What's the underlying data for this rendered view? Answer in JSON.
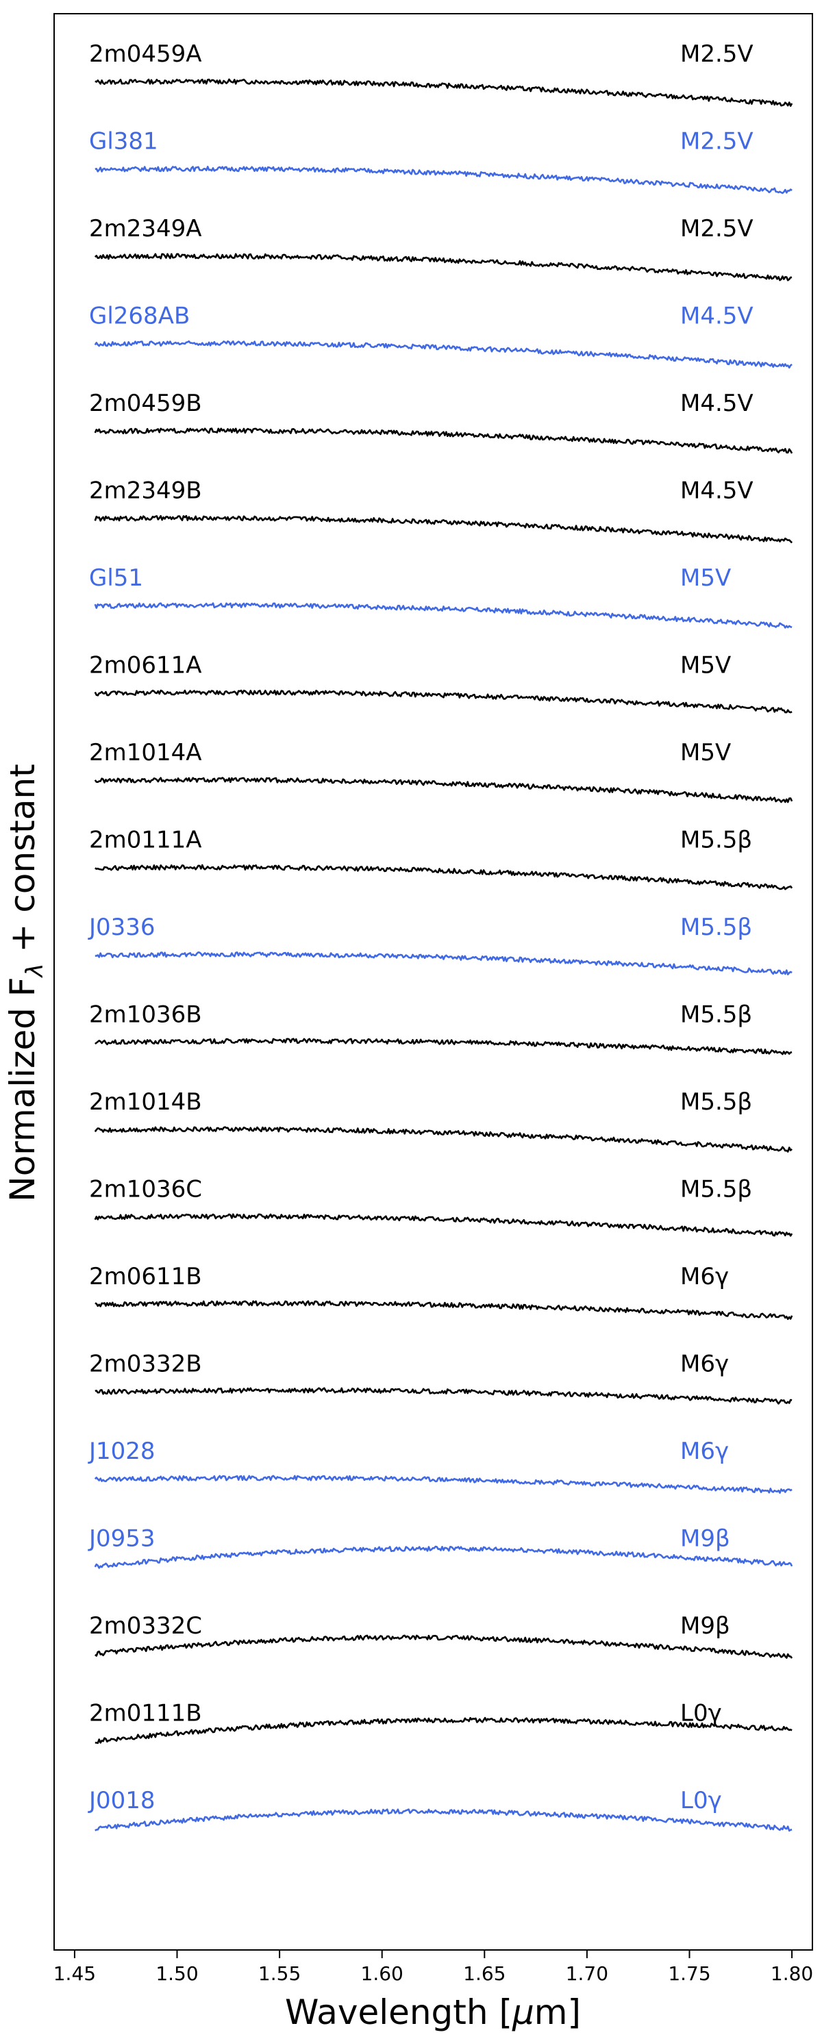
{
  "chart_data": {
    "type": "line",
    "xlabel_parts": {
      "pre": "Wavelength [",
      "mu": "μ",
      "post": "m]"
    },
    "ylabel_parts": {
      "pre": "Normalized F",
      "sub": "λ",
      "post": " + constant"
    },
    "xlim": [
      1.44,
      1.81
    ],
    "xticks": [
      1.45,
      1.5,
      1.55,
      1.6,
      1.65,
      1.7,
      1.75,
      1.8
    ],
    "xtick_labels": [
      "1.45",
      "1.50",
      "1.55",
      "1.60",
      "1.65",
      "1.70",
      "1.75",
      "1.80"
    ],
    "y_ticks_labeled": false,
    "grid": false,
    "colors": {
      "black": "#000000",
      "blue": "#4169e1"
    },
    "series": [
      {
        "name": "2m0459A",
        "spectral_type": "M2.5V",
        "color": "black",
        "x_range": [
          1.46,
          1.8
        ],
        "y_start": 1.0,
        "y_end": 0.55
      },
      {
        "name": "Gl381",
        "spectral_type": "M2.5V",
        "color": "blue",
        "x_range": [
          1.46,
          1.8
        ],
        "y_start": 1.0,
        "y_end": 0.55
      },
      {
        "name": "2m2349A",
        "spectral_type": "M2.5V",
        "color": "black",
        "x_range": [
          1.46,
          1.8
        ],
        "y_start": 1.0,
        "y_end": 0.55
      },
      {
        "name": "Gl268AB",
        "spectral_type": "M4.5V",
        "color": "blue",
        "x_range": [
          1.46,
          1.8
        ],
        "y_start": 1.0,
        "y_end": 0.55
      },
      {
        "name": "2m0459B",
        "spectral_type": "M4.5V",
        "color": "black",
        "x_range": [
          1.46,
          1.8
        ],
        "y_start": 1.0,
        "y_end": 0.6
      },
      {
        "name": "2m2349B",
        "spectral_type": "M4.5V",
        "color": "black",
        "x_range": [
          1.46,
          1.8
        ],
        "y_start": 1.0,
        "y_end": 0.55
      },
      {
        "name": "Gl51",
        "spectral_type": "M5V",
        "color": "blue",
        "x_range": [
          1.46,
          1.8
        ],
        "y_start": 1.0,
        "y_end": 0.6
      },
      {
        "name": "2m0611A",
        "spectral_type": "M5V",
        "color": "black",
        "x_range": [
          1.46,
          1.8
        ],
        "y_start": 1.0,
        "y_end": 0.65
      },
      {
        "name": "2m1014A",
        "spectral_type": "M5V",
        "color": "black",
        "x_range": [
          1.46,
          1.8
        ],
        "y_start": 1.0,
        "y_end": 0.6
      },
      {
        "name": "2m0111A",
        "spectral_type": "M5.5β",
        "color": "black",
        "x_range": [
          1.46,
          1.8
        ],
        "y_start": 1.0,
        "y_end": 0.6
      },
      {
        "name": "J0336",
        "spectral_type": "M5.5β",
        "color": "blue",
        "x_range": [
          1.46,
          1.8
        ],
        "y_start": 1.0,
        "y_end": 0.65
      },
      {
        "name": "2m1036B",
        "spectral_type": "M5.5β",
        "color": "black",
        "x_range": [
          1.46,
          1.8
        ],
        "y_start": 1.0,
        "y_end": 0.8
      },
      {
        "name": "2m1014B",
        "spectral_type": "M5.5β",
        "color": "black",
        "x_range": [
          1.46,
          1.8
        ],
        "y_start": 1.0,
        "y_end": 0.6
      },
      {
        "name": "2m1036C",
        "spectral_type": "M5.5β",
        "color": "black",
        "x_range": [
          1.46,
          1.8
        ],
        "y_start": 1.0,
        "y_end": 0.65
      },
      {
        "name": "2m0611B",
        "spectral_type": "M6γ",
        "color": "black",
        "x_range": [
          1.46,
          1.8
        ],
        "y_start": 1.0,
        "y_end": 0.75
      },
      {
        "name": "2m0332B",
        "spectral_type": "M6γ",
        "color": "black",
        "x_range": [
          1.46,
          1.8
        ],
        "y_start": 1.0,
        "y_end": 0.8
      },
      {
        "name": "J1028",
        "spectral_type": "M6γ",
        "color": "blue",
        "x_range": [
          1.46,
          1.8
        ],
        "y_start": 1.0,
        "y_end": 0.75
      },
      {
        "name": "J0953",
        "spectral_type": "M9β",
        "color": "blue",
        "x_range": [
          1.46,
          1.8
        ],
        "y_start": 1.0,
        "y_end": 1.05
      },
      {
        "name": "2m0332C",
        "spectral_type": "M9β",
        "color": "black",
        "x_range": [
          1.46,
          1.8
        ],
        "y_start": 1.0,
        "y_end": 0.95
      },
      {
        "name": "2m0111B",
        "spectral_type": "L0γ",
        "color": "black",
        "x_range": [
          1.46,
          1.8
        ],
        "y_start": 1.0,
        "y_end": 1.25
      },
      {
        "name": "J0018",
        "spectral_type": "L0γ",
        "color": "blue",
        "x_range": [
          1.46,
          1.8
        ],
        "y_start": 1.0,
        "y_end": 1.0
      }
    ]
  }
}
